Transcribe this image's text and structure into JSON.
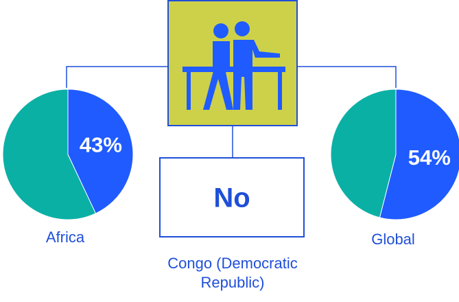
{
  "chart_data": [
    {
      "type": "pie",
      "title": "Africa",
      "values": [
        43,
        57
      ],
      "value_labels": [
        "43%",
        null
      ],
      "colors": [
        "#1f5bff",
        "#0bb0a5"
      ]
    },
    {
      "type": "pie",
      "title": "Global",
      "values": [
        54,
        46
      ],
      "value_labels": [
        "54%",
        null
      ],
      "colors": [
        "#1f5bff",
        "#0bb0a5"
      ]
    }
  ],
  "answer": "No",
  "country": "Congo (Democratic Republic)"
}
